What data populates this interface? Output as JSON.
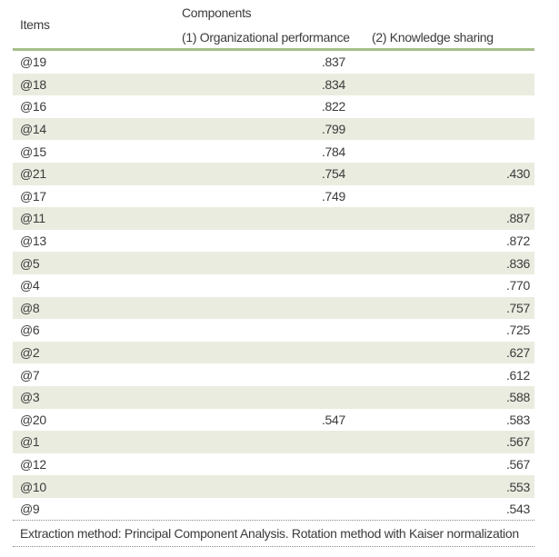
{
  "table": {
    "header": {
      "items_label": "Items",
      "components_label": "Components",
      "col1_label": "(1) Organizational performance",
      "col2_label": "(2) Knowledge sharing"
    },
    "rows": [
      {
        "item": "@19",
        "col1": ".837",
        "col2": ""
      },
      {
        "item": "@18",
        "col1": ".834",
        "col2": ""
      },
      {
        "item": "@16",
        "col1": ".822",
        "col2": ""
      },
      {
        "item": "@14",
        "col1": ".799",
        "col2": ""
      },
      {
        "item": "@15",
        "col1": ".784",
        "col2": ""
      },
      {
        "item": "@21",
        "col1": ".754",
        "col2": ".430"
      },
      {
        "item": "@17",
        "col1": ".749",
        "col2": ""
      },
      {
        "item": "@11",
        "col1": "",
        "col2": ".887"
      },
      {
        "item": "@13",
        "col1": "",
        "col2": ".872"
      },
      {
        "item": "@5",
        "col1": "",
        "col2": ".836"
      },
      {
        "item": "@4",
        "col1": "",
        "col2": ".770"
      },
      {
        "item": "@8",
        "col1": "",
        "col2": ".757"
      },
      {
        "item": "@6",
        "col1": "",
        "col2": ".725"
      },
      {
        "item": "@2",
        "col1": "",
        "col2": ".627"
      },
      {
        "item": "@7",
        "col1": "",
        "col2": ".612"
      },
      {
        "item": "@3",
        "col1": "",
        "col2": ".588"
      },
      {
        "item": "@20",
        "col1": ".547",
        "col2": ".583"
      },
      {
        "item": "@1",
        "col1": "",
        "col2": ".567"
      },
      {
        "item": "@12",
        "col1": "",
        "col2": ".567"
      },
      {
        "item": "@10",
        "col1": "",
        "col2": ".553"
      },
      {
        "item": "@9",
        "col1": "",
        "col2": ".543"
      }
    ],
    "footnote": "Extraction method: Principal Component Analysis. Rotation method with Kaiser normalization"
  },
  "colors": {
    "header_rule": "#a5bf89",
    "row_shade": "#e9ecdf",
    "text": "#3b3b3b",
    "dotted_border": "#8b8b8b"
  }
}
